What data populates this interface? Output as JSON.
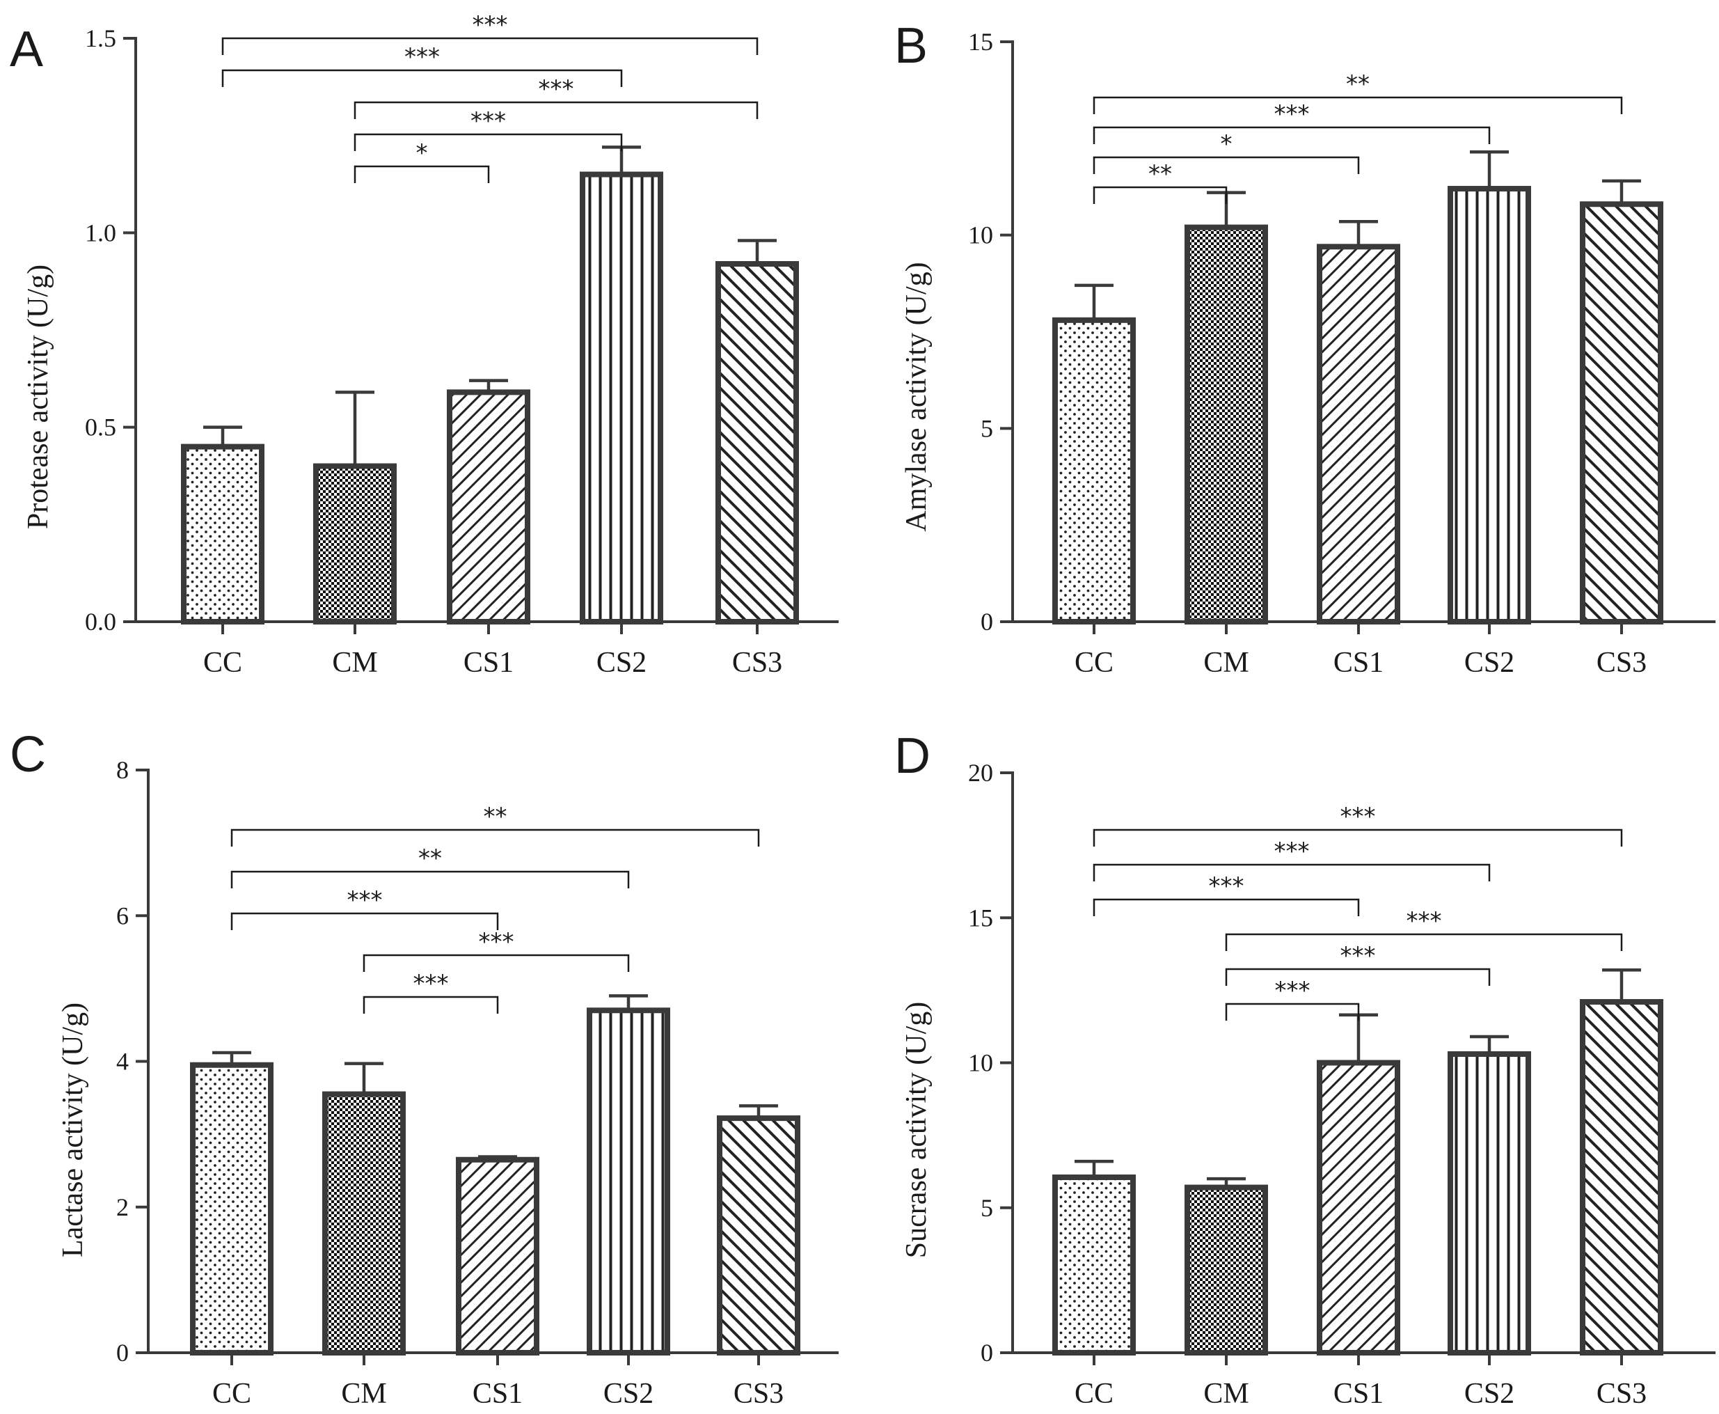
{
  "chart_data": [
    {
      "id": "A",
      "type": "bar",
      "panel_label": "A",
      "ylabel": "Protease activity (U/g)",
      "categories": [
        "CC",
        "CM",
        "CS1",
        "CS2",
        "CS3"
      ],
      "values": [
        0.45,
        0.4,
        0.59,
        1.15,
        0.92
      ],
      "errors": [
        0.05,
        0.19,
        0.03,
        0.07,
        0.06
      ],
      "ylim": [
        0,
        1.5
      ],
      "yticks": [
        0.0,
        0.5,
        1.0,
        1.5
      ],
      "ytick_labels": [
        "0.0",
        "0.5",
        "1.0",
        "1.5"
      ],
      "significance": [
        {
          "from": "CC",
          "to": "CS3",
          "label": "***"
        },
        {
          "from": "CC",
          "to": "CS2",
          "label": "***"
        },
        {
          "from": "CM",
          "to": "CS3",
          "label": "***"
        },
        {
          "from": "CM",
          "to": "CS2",
          "label": "***"
        },
        {
          "from": "CM",
          "to": "CS1",
          "label": "*"
        }
      ]
    },
    {
      "id": "B",
      "type": "bar",
      "panel_label": "B",
      "ylabel": "Amylase activity (U/g)",
      "categories": [
        "CC",
        "CM",
        "CS1",
        "CS2",
        "CS3"
      ],
      "values": [
        7.8,
        10.2,
        9.7,
        11.2,
        10.8
      ],
      "errors": [
        0.9,
        0.9,
        0.65,
        0.95,
        0.6
      ],
      "ylim": [
        0,
        15
      ],
      "yticks": [
        0,
        5,
        10,
        15
      ],
      "ytick_labels": [
        "0",
        "5",
        "10",
        "15"
      ],
      "significance": [
        {
          "from": "CC",
          "to": "CS3",
          "label": "**"
        },
        {
          "from": "CC",
          "to": "CS2",
          "label": "***"
        },
        {
          "from": "CC",
          "to": "CS1",
          "label": "*"
        },
        {
          "from": "CC",
          "to": "CM",
          "label": "**"
        }
      ]
    },
    {
      "id": "C",
      "type": "bar",
      "panel_label": "C",
      "ylabel": "Lactase activity (U/g)",
      "categories": [
        "CC",
        "CM",
        "CS1",
        "CS2",
        "CS3"
      ],
      "values": [
        3.95,
        3.55,
        2.65,
        4.7,
        3.22
      ],
      "errors": [
        0.17,
        0.42,
        0.04,
        0.2,
        0.17
      ],
      "ylim": [
        0,
        8
      ],
      "yticks": [
        0,
        2,
        4,
        6,
        8
      ],
      "ytick_labels": [
        "0",
        "2",
        "4",
        "6",
        "8"
      ],
      "significance": [
        {
          "from": "CC",
          "to": "CS3",
          "label": "**"
        },
        {
          "from": "CC",
          "to": "CS2",
          "label": "**"
        },
        {
          "from": "CC",
          "to": "CS1",
          "label": "***"
        },
        {
          "from": "CM",
          "to": "CS2",
          "label": "***"
        },
        {
          "from": "CM",
          "to": "CS1",
          "label": "***"
        }
      ]
    },
    {
      "id": "D",
      "type": "bar",
      "panel_label": "D",
      "ylabel": "Sucrase activity (U/g)",
      "categories": [
        "CC",
        "CM",
        "CS1",
        "CS2",
        "CS3"
      ],
      "values": [
        6.05,
        5.7,
        10.0,
        10.3,
        12.1
      ],
      "errors": [
        0.55,
        0.3,
        1.65,
        0.6,
        1.1
      ],
      "ylim": [
        0,
        20
      ],
      "yticks": [
        0,
        5,
        10,
        15,
        20
      ],
      "ytick_labels": [
        "0",
        "5",
        "10",
        "15",
        "20"
      ],
      "significance": [
        {
          "from": "CC",
          "to": "CS3",
          "label": "***"
        },
        {
          "from": "CC",
          "to": "CS2",
          "label": "***"
        },
        {
          "from": "CC",
          "to": "CS1",
          "label": "***"
        },
        {
          "from": "CM",
          "to": "CS3",
          "label": "***"
        },
        {
          "from": "CM",
          "to": "CS2",
          "label": "***"
        },
        {
          "from": "CM",
          "to": "CS1",
          "label": "***"
        }
      ]
    }
  ]
}
